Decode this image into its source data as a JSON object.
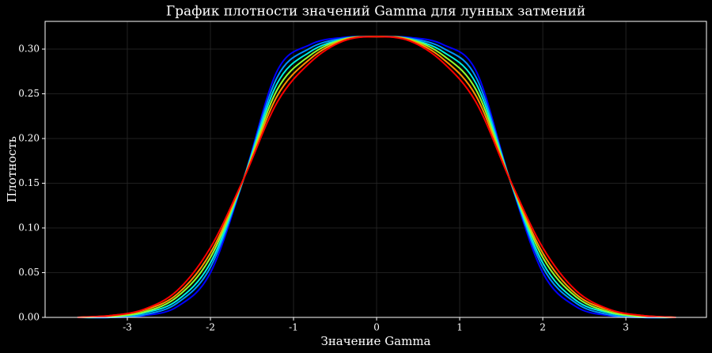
{
  "chart_data": {
    "type": "line",
    "title": "График плотности значений Gamma для лунных затмений",
    "xlabel": "Значение Gamma",
    "ylabel": "Плотность",
    "x": [
      -3.6,
      -3.2,
      -2.8,
      -2.4,
      -2.0,
      -1.6,
      -1.2,
      -0.8,
      -0.4,
      0,
      0.4,
      0.8,
      1.2,
      1.6,
      2.0,
      2.4,
      2.8,
      3.2,
      3.6
    ],
    "series": [
      {
        "color": "#0000ff",
        "values": [
          0,
          0,
          0.002,
          0.012,
          0.05,
          0.155,
          0.275,
          0.305,
          0.313,
          0.314,
          0.313,
          0.305,
          0.275,
          0.155,
          0.05,
          0.012,
          0.002,
          0,
          0
        ]
      },
      {
        "color": "#0090ff",
        "values": [
          0,
          0,
          0.003,
          0.016,
          0.056,
          0.155,
          0.268,
          0.301,
          0.312,
          0.314,
          0.312,
          0.301,
          0.268,
          0.155,
          0.056,
          0.016,
          0.003,
          0,
          0
        ]
      },
      {
        "color": "#00f0e0",
        "values": [
          0,
          0.001,
          0.005,
          0.019,
          0.061,
          0.155,
          0.261,
          0.297,
          0.311,
          0.314,
          0.311,
          0.297,
          0.261,
          0.155,
          0.061,
          0.019,
          0.005,
          0.001,
          0
        ]
      },
      {
        "color": "#90ff30",
        "values": [
          0,
          0.001,
          0.006,
          0.023,
          0.067,
          0.155,
          0.254,
          0.293,
          0.311,
          0.314,
          0.311,
          0.293,
          0.254,
          0.155,
          0.067,
          0.023,
          0.006,
          0.001,
          0
        ]
      },
      {
        "color": "#ff9000",
        "values": [
          0,
          0.002,
          0.008,
          0.026,
          0.072,
          0.155,
          0.247,
          0.289,
          0.31,
          0.314,
          0.31,
          0.289,
          0.247,
          0.155,
          0.072,
          0.026,
          0.008,
          0.002,
          0
        ]
      },
      {
        "color": "#ff0000",
        "values": [
          0,
          0.002,
          0.009,
          0.03,
          0.078,
          0.155,
          0.24,
          0.285,
          0.309,
          0.314,
          0.309,
          0.285,
          0.24,
          0.155,
          0.078,
          0.03,
          0.009,
          0.002,
          0
        ]
      }
    ],
    "xlim": [
      -3.99,
      3.97
    ],
    "ylim": [
      0,
      0.331
    ],
    "xticks": [
      {
        "value": -3,
        "label": "-3"
      },
      {
        "value": -2,
        "label": "-2"
      },
      {
        "value": -1,
        "label": "-1"
      },
      0,
      1,
      2,
      3
    ],
    "yticks": [
      {
        "value": 0,
        "label": "0.00"
      },
      {
        "value": 0.05,
        "label": "0.05"
      },
      {
        "value": 0.1,
        "label": "0.10"
      },
      {
        "value": 0.15,
        "label": "0.15"
      },
      {
        "value": 0.2,
        "label": "0.20"
      },
      {
        "value": 0.25,
        "label": "0.25"
      },
      {
        "value": 0.3,
        "label": "0.30"
      }
    ],
    "grid": true
  }
}
